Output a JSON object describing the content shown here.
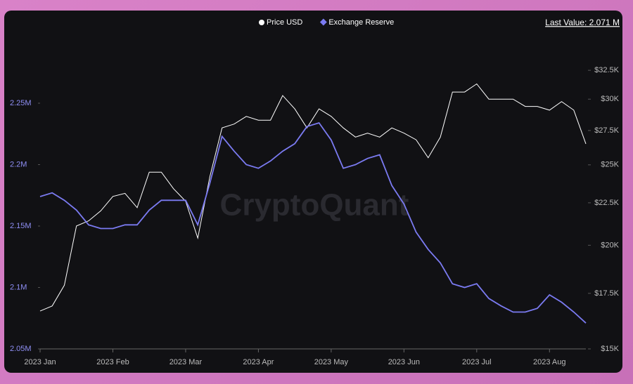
{
  "chart_data": {
    "type": "line",
    "watermark": "CryptoQuant",
    "last_value": "Last Value: 2.071 M",
    "categories": [
      "2023 Jan",
      null,
      null,
      null,
      null,
      null,
      "2023 Feb",
      null,
      null,
      null,
      null,
      null,
      "2023 Mar",
      null,
      null,
      null,
      null,
      null,
      "2023 Apr",
      null,
      null,
      null,
      null,
      null,
      "2023 May",
      null,
      null,
      null,
      null,
      null,
      "2023 Jun",
      null,
      null,
      null,
      null,
      null,
      "2023 Jul",
      null,
      null,
      null,
      null,
      null,
      "2023 Aug",
      null,
      null,
      null
    ],
    "series": [
      {
        "name": "Price USD",
        "color": "#ffffff",
        "axis": "y2",
        "values": [
          16660,
          16900,
          17900,
          21100,
          21400,
          22000,
          22900,
          23100,
          22200,
          24500,
          24500,
          23400,
          22600,
          20400,
          24200,
          27700,
          28000,
          28600,
          28300,
          28300,
          30300,
          29200,
          27700,
          29200,
          28600,
          27700,
          27000,
          27300,
          27000,
          27700,
          27300,
          26800,
          25500,
          27000,
          30600,
          30600,
          31300,
          30000,
          30000,
          30000,
          29400,
          29400,
          29100,
          29800,
          29100,
          26500
        ]
      },
      {
        "name": "Exchange Reserve",
        "color": "#7b7bf2",
        "values": [
          2.174,
          2.177,
          2.171,
          2.163,
          2.151,
          2.148,
          2.148,
          2.151,
          2.151,
          2.163,
          2.171,
          2.171,
          2.171,
          2.151,
          2.185,
          2.223,
          2.211,
          2.2,
          2.197,
          2.203,
          2.211,
          2.217,
          2.231,
          2.234,
          2.22,
          2.197,
          2.2,
          2.205,
          2.208,
          2.183,
          2.168,
          2.145,
          2.131,
          2.12,
          2.103,
          2.1,
          2.103,
          2.091,
          2.085,
          2.08,
          2.08,
          2.083,
          2.094,
          2.088,
          2.08,
          2.071
        ]
      }
    ],
    "ylim": [
      2.05,
      2.29
    ],
    "yticks": [
      {
        "value": 2.05,
        "label": "2.05M"
      },
      {
        "value": 2.1,
        "label": "2.1M"
      },
      {
        "value": 2.15,
        "label": "2.15M"
      },
      {
        "value": 2.2,
        "label": "2.2M"
      },
      {
        "value": 2.25,
        "label": "2.25M"
      }
    ],
    "y2lim": [
      15000,
      34000
    ],
    "y2scale": "log",
    "y2ticks": [
      {
        "value": 15000,
        "label": "$15K"
      },
      {
        "value": 17500,
        "label": "$17.5K"
      },
      {
        "value": 20000,
        "label": "$20K"
      },
      {
        "value": 22500,
        "label": "$22.5K"
      },
      {
        "value": 25000,
        "label": "$25K"
      },
      {
        "value": 27500,
        "label": "$27.5K"
      },
      {
        "value": 30000,
        "label": "$30K"
      },
      {
        "value": 32500,
        "label": "$32.5K"
      }
    ],
    "grid": false,
    "legend": "top"
  }
}
